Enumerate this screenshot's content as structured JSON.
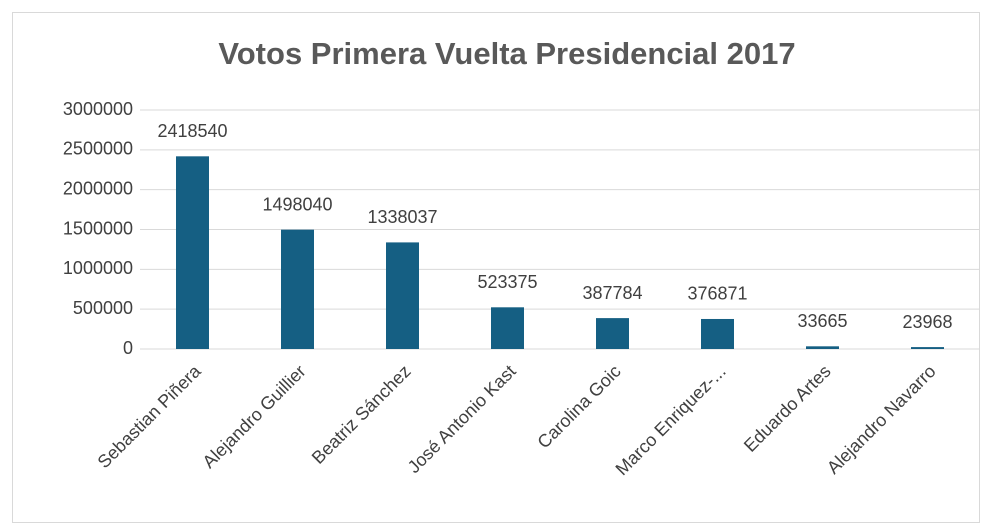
{
  "chart_data": {
    "type": "bar",
    "title": "Votos Primera Vuelta Presidencial 2017",
    "categories": [
      "Sebastian Piñera",
      "Alejandro Guillier",
      "Beatriz Sánchez",
      "José Antonio Kast",
      "Carolina Goic",
      "Marco Enriquez-...",
      "Eduardo Artes",
      "Alejandro Navarro"
    ],
    "values": [
      2418540,
      1498040,
      1338037,
      523375,
      387784,
      376871,
      33665,
      23968
    ],
    "color": "#155f83",
    "ylim": [
      0,
      3000000
    ],
    "yticks": [
      0,
      500000,
      1000000,
      1500000,
      2000000,
      2500000,
      3000000
    ],
    "grid": true
  }
}
